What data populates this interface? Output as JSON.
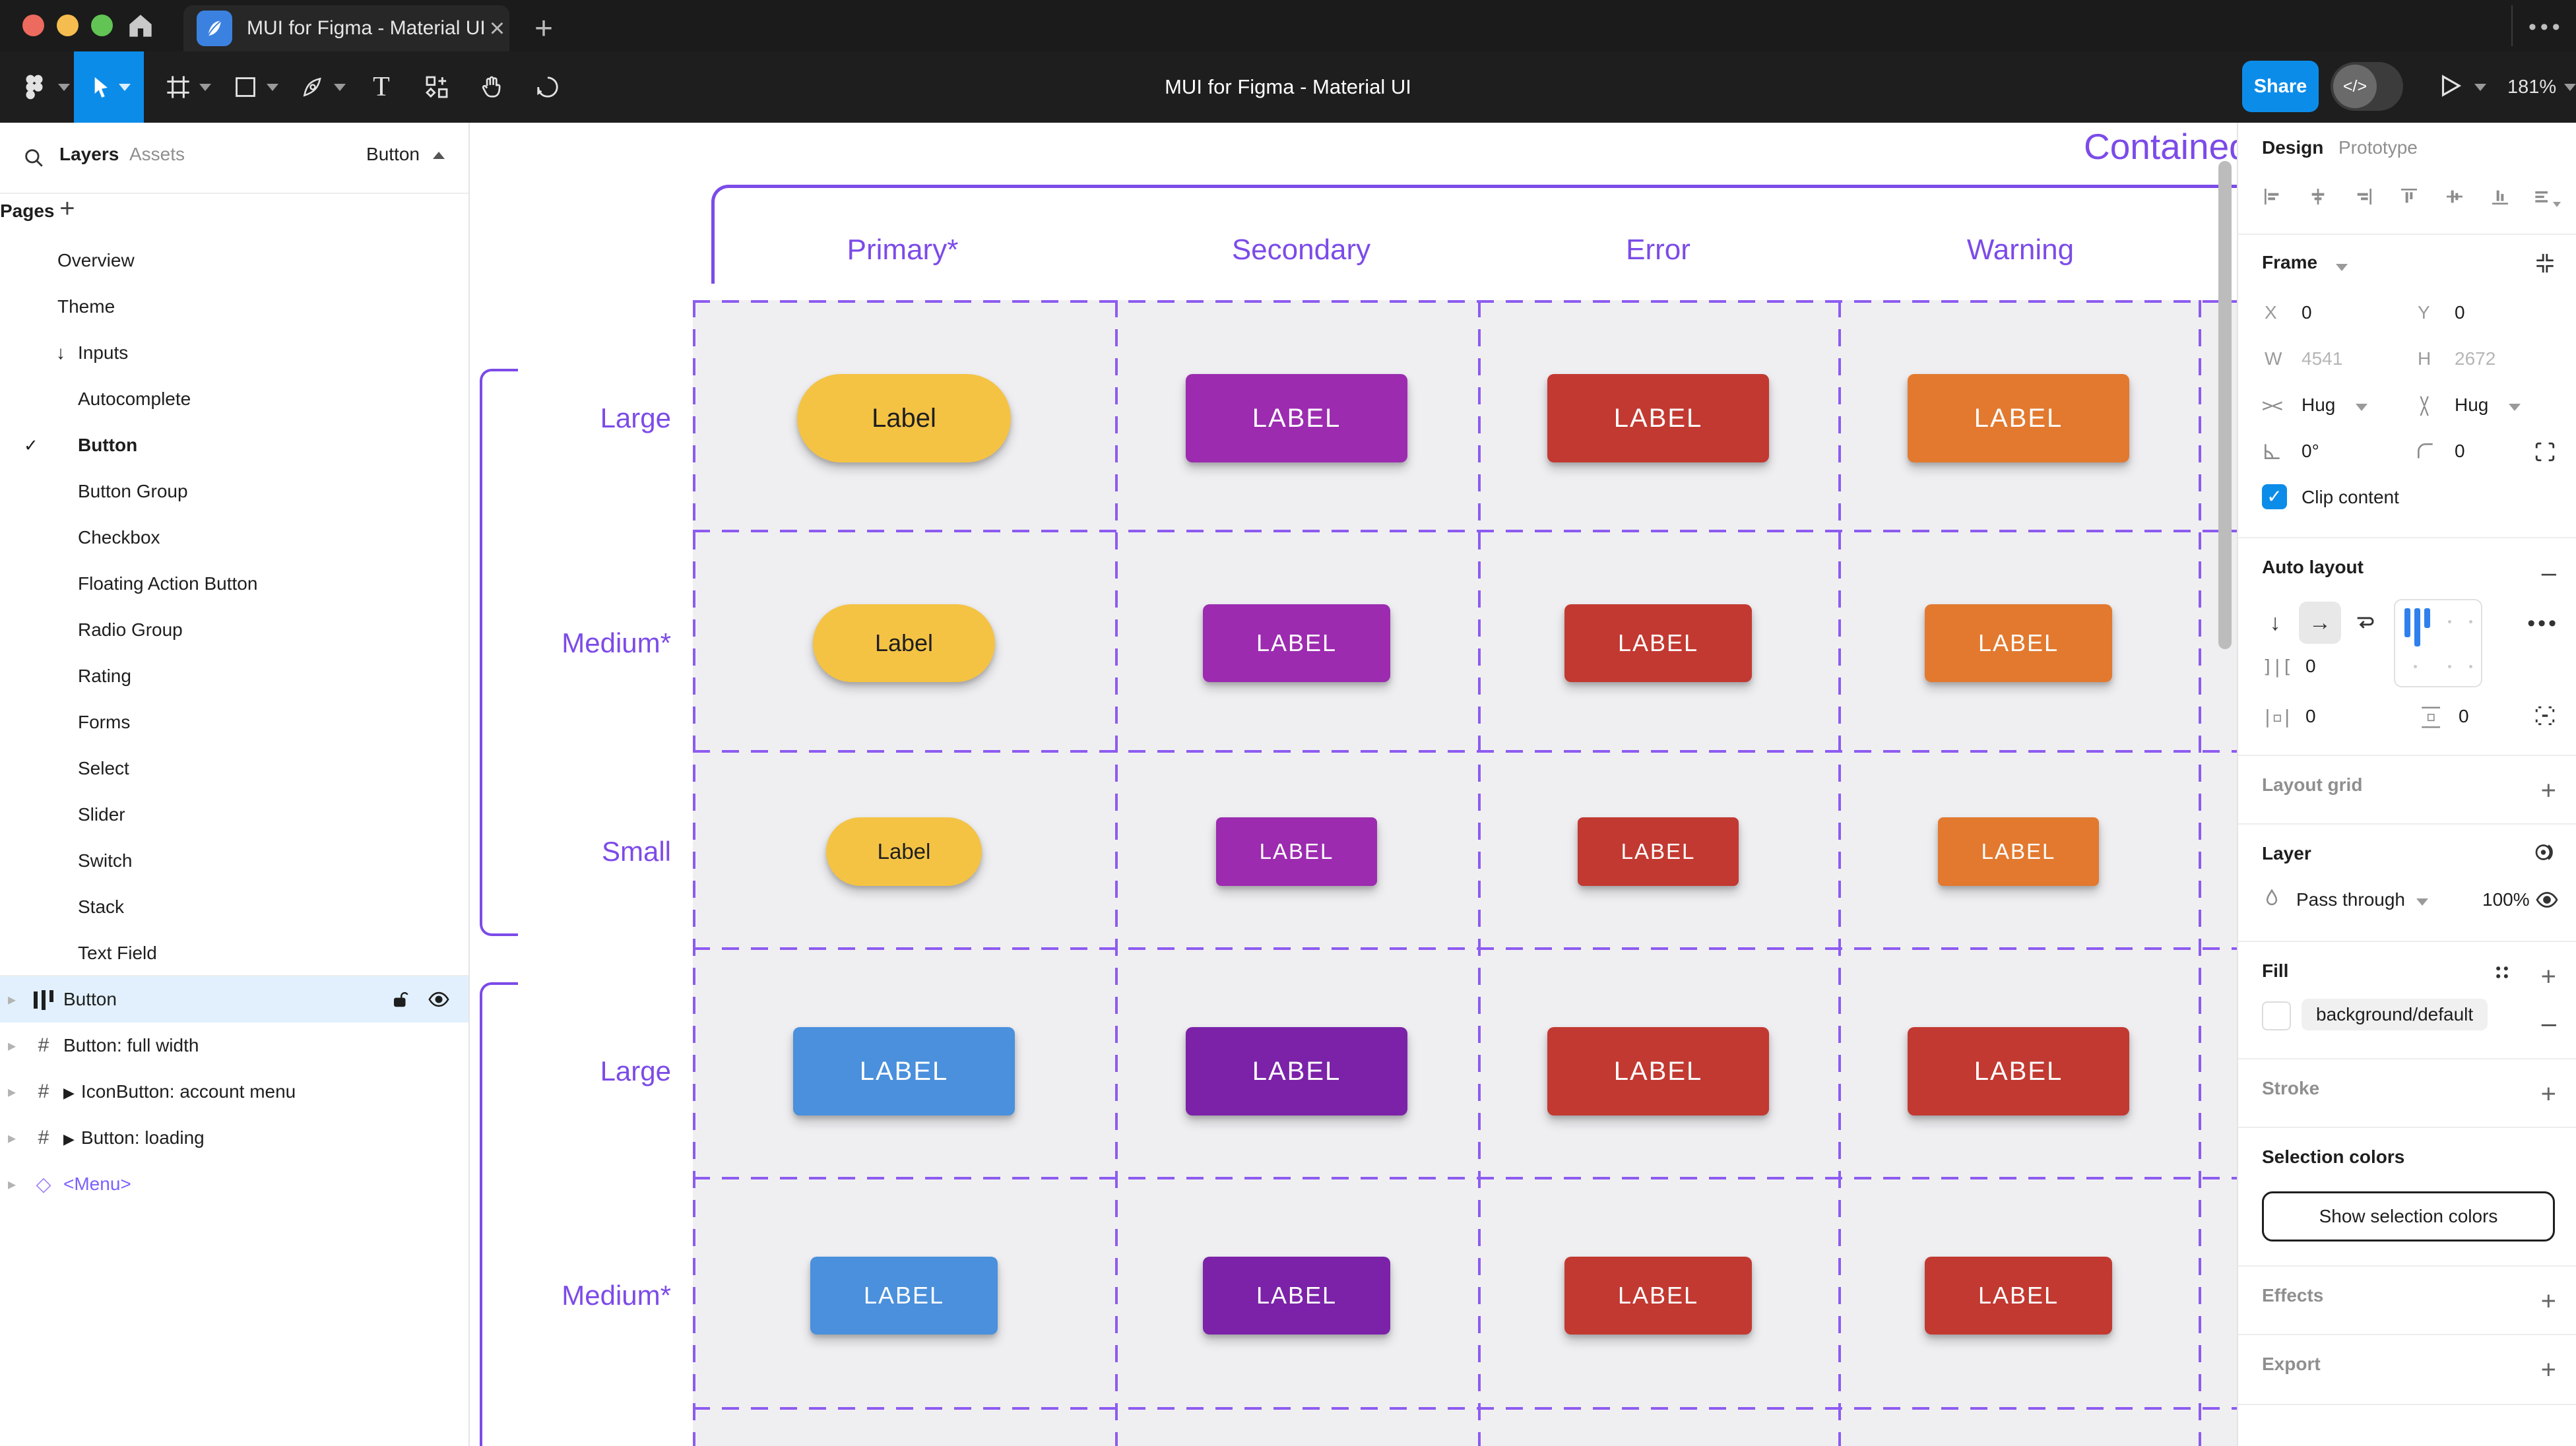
{
  "browser": {
    "tab_title": "MUI for Figma - Material UI",
    "close_glyph": "×",
    "new_tab_glyph": "+",
    "overflow_glyph": "•••"
  },
  "toolbar": {
    "title": "MUI for Figma - Material UI",
    "share_label": "Share",
    "dev_mode_glyph": "</>",
    "zoom_level": "181%"
  },
  "left_panel": {
    "tabs": {
      "layers": "Layers",
      "assets": "Assets"
    },
    "selection_chip": "Button",
    "pages_title": "Pages",
    "pages": [
      {
        "label": "Overview"
      },
      {
        "label": "Theme"
      },
      {
        "label": "Inputs",
        "arrow": "↓"
      },
      {
        "label": "Autocomplete",
        "indent": true
      },
      {
        "label": "Button",
        "indent": true,
        "checked": "✓",
        "active": true
      },
      {
        "label": "Button Group",
        "indent": true
      },
      {
        "label": "Checkbox",
        "indent": true
      },
      {
        "label": "Floating Action Button",
        "indent": true
      },
      {
        "label": "Radio Group",
        "indent": true
      },
      {
        "label": "Rating",
        "indent": true
      },
      {
        "label": "Forms",
        "indent": true
      },
      {
        "label": "Select",
        "indent": true
      },
      {
        "label": "Slider",
        "indent": true
      },
      {
        "label": "Switch",
        "indent": true
      },
      {
        "label": "Stack",
        "indent": true
      },
      {
        "label": "Text Field",
        "indent": true
      }
    ],
    "layers": [
      {
        "label": "Button",
        "icon": "auto-layout",
        "selected": true
      },
      {
        "label": "Button: full width",
        "icon": "frame"
      },
      {
        "label": "IconButton: account menu",
        "icon": "frame",
        "component": true
      },
      {
        "label": "Button: loading",
        "icon": "frame",
        "component": true
      },
      {
        "label": "<Menu>",
        "icon": "instance",
        "purple": true
      }
    ]
  },
  "canvas": {
    "section_title": "Contained",
    "column_headers": [
      "Primary*",
      "Secondary",
      "Error",
      "Warning"
    ],
    "rows": [
      {
        "label": "Large",
        "size": "lg",
        "buttons": [
          {
            "text": "Label",
            "color": "primary_yellow",
            "fg": "#1f1f1f",
            "pill": true
          },
          {
            "text": "LABEL",
            "color": "secondary_purple",
            "fg": "#ffffff"
          },
          {
            "text": "LABEL",
            "color": "error_red",
            "fg": "#ffffff"
          },
          {
            "text": "LABEL",
            "color": "warning_orange",
            "fg": "#ffffff"
          }
        ]
      },
      {
        "label": "Medium*",
        "size": "md",
        "buttons": [
          {
            "text": "Label",
            "color": "primary_yellow",
            "fg": "#1f1f1f",
            "pill": true
          },
          {
            "text": "LABEL",
            "color": "secondary_purple",
            "fg": "#ffffff"
          },
          {
            "text": "LABEL",
            "color": "error_red",
            "fg": "#ffffff"
          },
          {
            "text": "LABEL",
            "color": "warning_orange",
            "fg": "#ffffff"
          }
        ]
      },
      {
        "label": "Small",
        "size": "sm",
        "buttons": [
          {
            "text": "Label",
            "color": "primary_yellow",
            "fg": "#1f1f1f",
            "pill": true
          },
          {
            "text": "LABEL",
            "color": "secondary_purple",
            "fg": "#ffffff"
          },
          {
            "text": "LABEL",
            "color": "error_red",
            "fg": "#ffffff"
          },
          {
            "text": "LABEL",
            "color": "warning_orange",
            "fg": "#ffffff"
          }
        ]
      },
      {
        "label": "Large",
        "size": "lg",
        "buttons": [
          {
            "text": "LABEL",
            "color": "primary_blue",
            "fg": "#ffffff"
          },
          {
            "text": "LABEL",
            "color": "secondary_dark_purple",
            "fg": "#ffffff"
          },
          {
            "text": "LABEL",
            "color": "error_red",
            "fg": "#ffffff"
          },
          {
            "text": "LABEL",
            "color": "error_red",
            "fg": "#ffffff"
          }
        ]
      },
      {
        "label": "Medium*",
        "size": "md",
        "buttons": [
          {
            "text": "LABEL",
            "color": "primary_blue",
            "fg": "#ffffff"
          },
          {
            "text": "LABEL",
            "color": "secondary_dark_purple",
            "fg": "#ffffff"
          },
          {
            "text": "LABEL",
            "color": "error_red",
            "fg": "#ffffff"
          },
          {
            "text": "LABEL",
            "color": "error_red",
            "fg": "#ffffff"
          }
        ]
      }
    ],
    "palette": {
      "primary_yellow": "#f5c343",
      "secondary_purple": "#9c2bb0",
      "error_red": "#c23931",
      "warning_orange": "#e2792f",
      "primary_blue": "#4a90dc",
      "secondary_dark_purple": "#7b22a8",
      "accent_purple": "#7c4be8"
    }
  },
  "right_panel": {
    "tabs": {
      "design": "Design",
      "prototype": "Prototype"
    },
    "frame": {
      "title": "Frame",
      "x_label": "X",
      "x_value": "0",
      "y_label": "Y",
      "y_value": "0",
      "w_label": "W",
      "w_value": "4541",
      "h_label": "H",
      "h_value": "2672",
      "hug_h": "Hug",
      "hug_v": "Hug",
      "rotation": "0°",
      "corner_radius": "0",
      "clip_label": "Clip content"
    },
    "auto_layout": {
      "title": "Auto layout",
      "gap": "0",
      "pad_h": "0",
      "pad_v": "0"
    },
    "layout_grid": {
      "title": "Layout grid"
    },
    "layer": {
      "title": "Layer",
      "blend_mode": "Pass through",
      "opacity": "100%"
    },
    "fill": {
      "title": "Fill",
      "token": "background/default"
    },
    "stroke": {
      "title": "Stroke"
    },
    "selection_colors": {
      "title": "Selection colors",
      "button_label": "Show selection colors"
    },
    "effects": {
      "title": "Effects"
    },
    "export": {
      "title": "Export"
    }
  }
}
